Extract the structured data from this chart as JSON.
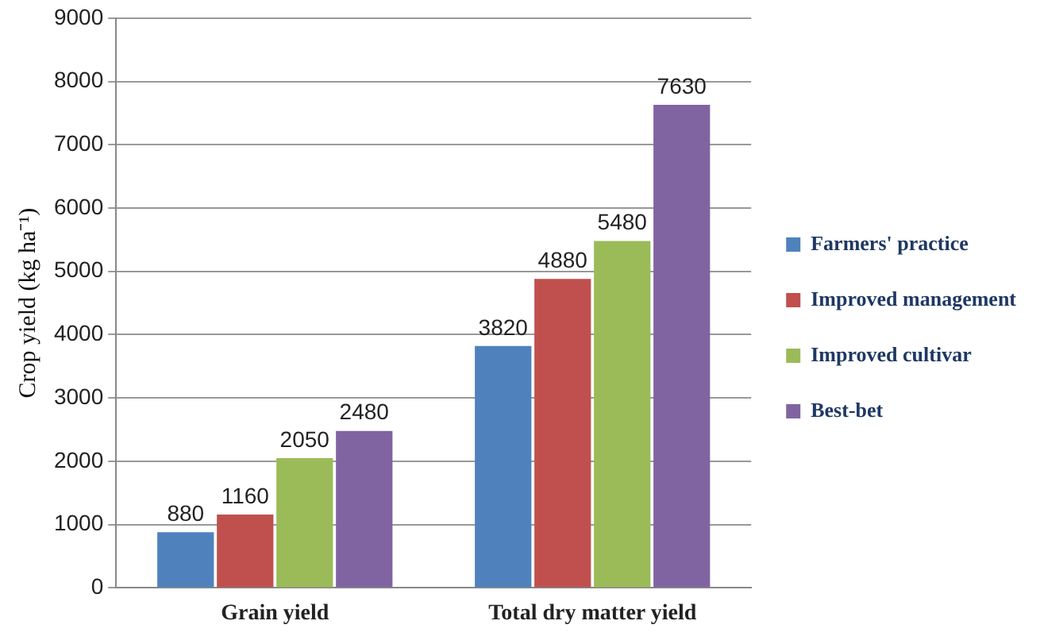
{
  "chart_data": {
    "type": "bar",
    "ylabel": "Crop yield (kg ha⁻¹)",
    "categories": [
      "Grain yield",
      "Total dry matter yield"
    ],
    "series": [
      {
        "name": "Farmers' practice",
        "color": "#4f81bd",
        "values": [
          880,
          3820
        ]
      },
      {
        "name": "Improved management",
        "color": "#c0504d",
        "values": [
          1160,
          4880
        ]
      },
      {
        "name": "Improved cultivar",
        "color": "#9bbb59",
        "values": [
          2050,
          5480
        ]
      },
      {
        "name": "Best-bet",
        "color": "#8064a2",
        "values": [
          2480,
          7630
        ]
      }
    ],
    "ylim": [
      0,
      9000
    ],
    "yticks": [
      0,
      1000,
      2000,
      3000,
      4000,
      5000,
      6000,
      7000,
      8000,
      9000
    ],
    "grid": "y",
    "legend": "right",
    "data_labels": true
  }
}
